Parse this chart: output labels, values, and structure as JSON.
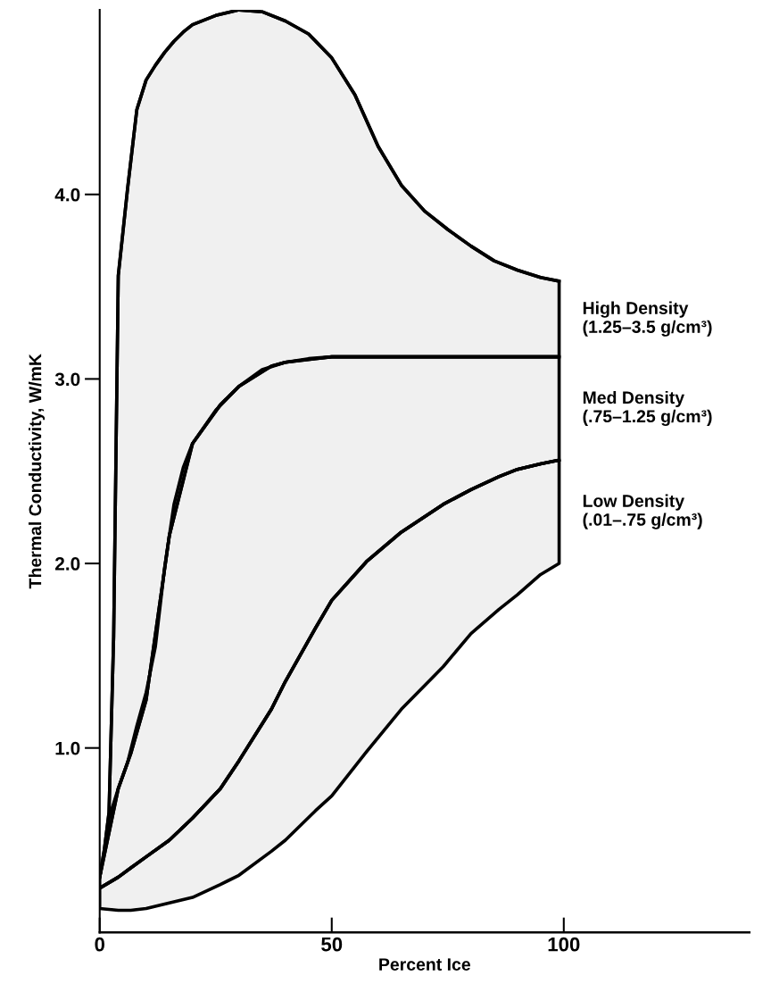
{
  "chart_data": {
    "type": "line",
    "xlabel": "Percent Ice",
    "ylabel": "Thermal Conductivity, W/mK",
    "xlim": [
      0,
      140
    ],
    "ylim": [
      0,
      5.0
    ],
    "xticks": [
      0,
      50,
      100
    ],
    "yticks": [
      {
        "value": 1,
        "label": "1.0"
      },
      {
        "value": 2,
        "label": "2.0"
      },
      {
        "value": 3,
        "label": "3.0"
      },
      {
        "value": 4,
        "label": "4.0"
      }
    ],
    "grid": false,
    "legend": false,
    "series": [
      {
        "name": "High Density\n(1.25–3.5 g/cm³)",
        "color": "#000000",
        "x": [
          0,
          1,
          2,
          3,
          4,
          6,
          8,
          10,
          12,
          14,
          16,
          18,
          20,
          25,
          30,
          35,
          40,
          45,
          50,
          55,
          60,
          65,
          70,
          75,
          80,
          85,
          90,
          95,
          99
        ],
        "values": [
          0.3,
          0.45,
          0.65,
          1.6,
          3.56,
          4.03,
          4.46,
          4.62,
          4.7,
          4.77,
          4.83,
          4.88,
          4.92,
          4.97,
          5.0,
          4.99,
          4.94,
          4.87,
          4.74,
          4.54,
          4.26,
          4.05,
          3.91,
          3.81,
          3.72,
          3.64,
          3.59,
          3.55,
          3.53
        ],
        "upper": [
          0.3,
          0.45,
          0.65,
          1.6,
          3.56,
          4.03,
          4.46,
          4.62,
          4.7,
          4.77,
          4.83,
          4.88,
          4.92,
          4.97,
          5.0,
          4.99,
          4.94,
          4.87,
          4.74,
          4.54,
          4.26,
          4.05,
          3.91,
          3.81,
          3.72,
          3.64,
          3.59,
          3.55,
          3.53
        ],
        "lower": [
          0.3,
          0.45,
          0.62,
          0.7,
          0.78,
          0.92,
          1.12,
          1.3,
          1.55,
          1.98,
          2.32,
          2.52,
          2.65,
          2.83,
          2.96,
          3.05,
          3.09,
          3.11,
          3.12,
          3.12,
          3.12,
          3.12,
          3.12,
          3.12,
          3.12,
          3.12,
          3.12,
          3.12,
          3.12
        ]
      },
      {
        "name": "Med Density\n(.75–1.25 g/cm³)",
        "color": "#000000",
        "x": [
          0,
          4,
          6.7,
          10,
          15,
          20,
          26,
          30,
          37,
          40,
          46.5,
          50,
          57.5,
          65,
          74,
          80,
          86,
          90,
          95,
          99
        ],
        "values": [
          0.3,
          0.78,
          0.97,
          1.26,
          2.15,
          2.65,
          2.86,
          2.96,
          3.07,
          3.09,
          3.11,
          3.12,
          3.12,
          3.12,
          3.12,
          3.12,
          3.12,
          3.12,
          3.12,
          3.12
        ],
        "upper": [
          0.3,
          0.78,
          0.97,
          1.26,
          2.15,
          2.65,
          2.86,
          2.96,
          3.07,
          3.09,
          3.11,
          3.12,
          3.12,
          3.12,
          3.12,
          3.12,
          3.12,
          3.12,
          3.12,
          3.12
        ],
        "lower": [
          0.24,
          0.3,
          0.35,
          0.41,
          0.5,
          0.62,
          0.78,
          0.93,
          1.21,
          1.36,
          1.65,
          1.8,
          2.01,
          2.17,
          2.32,
          2.4,
          2.47,
          2.51,
          2.54,
          2.56
        ]
      },
      {
        "name": "Low Density\n(.01–.75 g/cm³)",
        "color": "#000000",
        "x": [
          0,
          4,
          6.7,
          10,
          15,
          20,
          26,
          30,
          37,
          40,
          46.5,
          50,
          57.5,
          65,
          74,
          80,
          86,
          90,
          95,
          99
        ],
        "values": [
          0.24,
          0.3,
          0.35,
          0.41,
          0.5,
          0.62,
          0.78,
          0.93,
          1.21,
          1.36,
          1.65,
          1.8,
          2.01,
          2.17,
          2.32,
          2.4,
          2.47,
          2.51,
          2.54,
          2.56
        ],
        "upper": [
          0.24,
          0.3,
          0.35,
          0.41,
          0.5,
          0.62,
          0.78,
          0.93,
          1.21,
          1.36,
          1.65,
          1.8,
          2.01,
          2.17,
          2.32,
          2.4,
          2.47,
          2.51,
          2.54,
          2.56
        ],
        "lower": [
          0.13,
          0.12,
          0.12,
          0.13,
          0.16,
          0.19,
          0.26,
          0.31,
          0.44,
          0.5,
          0.66,
          0.74,
          0.98,
          1.21,
          1.44,
          1.62,
          1.75,
          1.83,
          1.94,
          2.0
        ]
      }
    ]
  }
}
